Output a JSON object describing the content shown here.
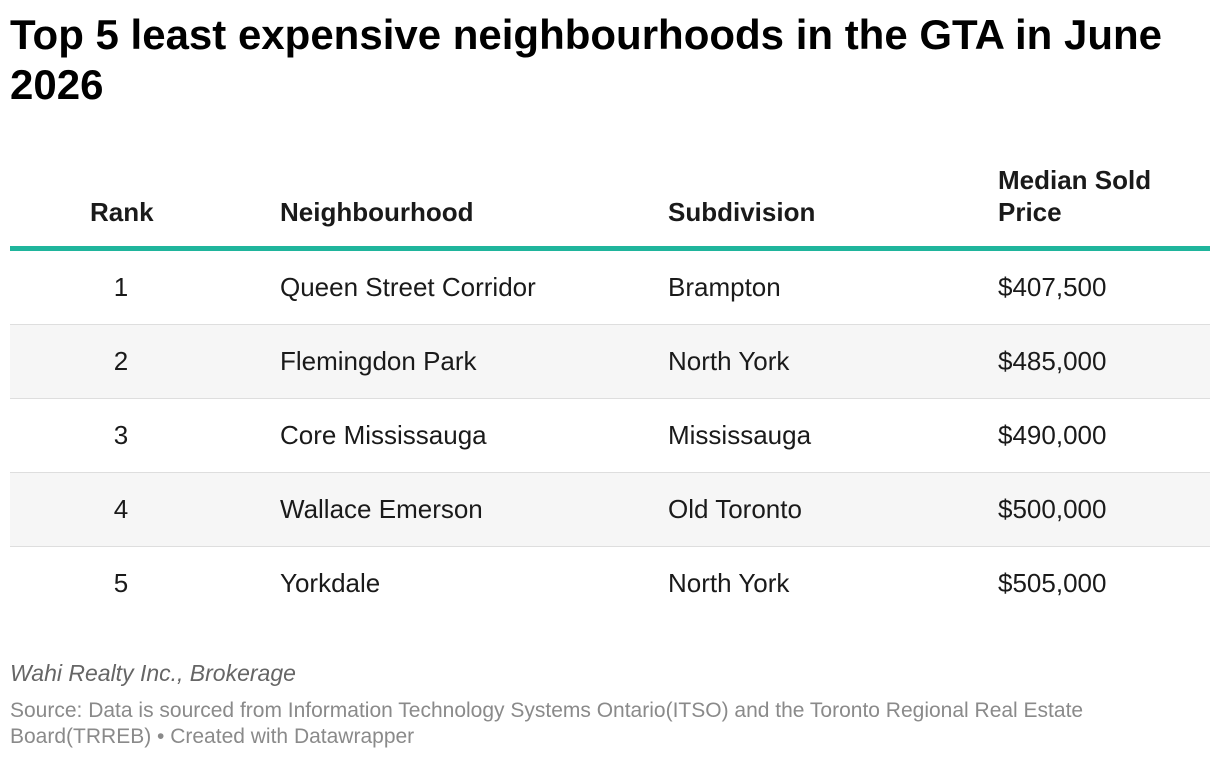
{
  "title": "Top 5 least expensive neighbourhoods in the GTA in June 2026",
  "columns": {
    "rank": "Rank",
    "neighbourhood": "Neighbourhood",
    "subdivision": "Subdivision",
    "price": "Median Sold Price"
  },
  "rows": [
    {
      "rank": "1",
      "neighbourhood": "Queen Street Corridor",
      "subdivision": "Brampton",
      "price": "$407,500"
    },
    {
      "rank": "2",
      "neighbourhood": "Flemingdon Park",
      "subdivision": "North York",
      "price": "$485,000"
    },
    {
      "rank": "3",
      "neighbourhood": "Core Mississauga",
      "subdivision": "Mississauga",
      "price": "$490,000"
    },
    {
      "rank": "4",
      "neighbourhood": "Wallace Emerson",
      "subdivision": "Old Toronto",
      "price": "$500,000"
    },
    {
      "rank": "5",
      "neighbourhood": "Yorkdale",
      "subdivision": "North York",
      "price": "$505,000"
    }
  ],
  "byline": "Wahi Realty Inc., Brokerage",
  "source": "Source: Data is sourced from Information Technology Systems Ontario(ITSO) and the Toronto Regional Real Estate Board(TRREB) • Created with Datawrapper",
  "colors": {
    "header_rule": "#1fb59c",
    "alt_row": "#f6f6f6",
    "row_divider": "#dedede"
  },
  "chart_data": {
    "type": "table",
    "title": "Top 5 least expensive neighbourhoods in the GTA in June 2026",
    "columns": [
      "Rank",
      "Neighbourhood",
      "Subdivision",
      "Median Sold Price"
    ],
    "rows": [
      [
        1,
        "Queen Street Corridor",
        "Brampton",
        407500
      ],
      [
        2,
        "Flemingdon Park",
        "North York",
        485000
      ],
      [
        3,
        "Core Mississauga",
        "Mississauga",
        490000
      ],
      [
        4,
        "Wallace Emerson",
        "Old Toronto",
        500000
      ],
      [
        5,
        "Yorkdale",
        "North York",
        505000
      ]
    ]
  }
}
